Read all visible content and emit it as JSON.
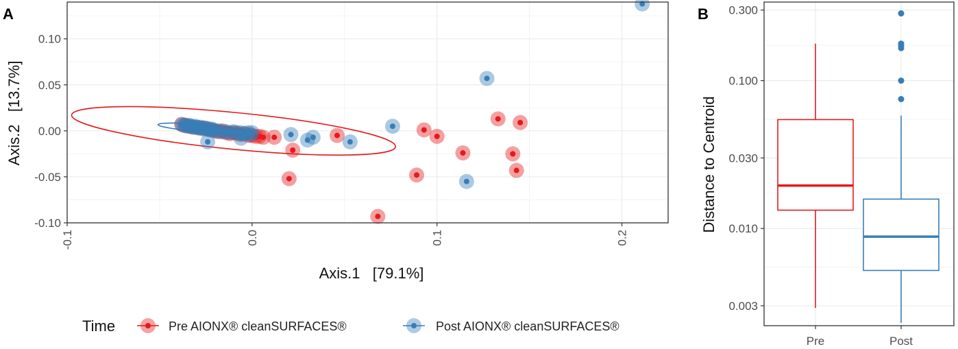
{
  "colors": {
    "pre": "#e41a1c",
    "post": "#377eb8",
    "grid": "#ebebeb",
    "frame": "#333333"
  },
  "legend": {
    "title": "Time",
    "items": [
      {
        "label": "Pre AIONX® cleanSURFACES®",
        "color": "#e41a1c"
      },
      {
        "label": "Post AIONX® cleanSURFACES®",
        "color": "#377eb8"
      }
    ]
  },
  "chart_data": [
    {
      "panel": "A",
      "type": "scatter",
      "xlabel": "Axis.1   [79.1%]",
      "ylabel": "Axis.2   [13.7%]",
      "xlim": [
        -0.1,
        0.225
      ],
      "ylim": [
        -0.1,
        0.14
      ],
      "xticks": [
        -0.1,
        0.0,
        0.1,
        0.2
      ],
      "xtick_labels": [
        "-0.1",
        "0.0",
        "0.1",
        "0.2"
      ],
      "yticks": [
        -0.1,
        -0.05,
        0.0,
        0.05,
        0.1
      ],
      "ytick_labels": [
        "-0.10",
        "-0.05",
        "0.00",
        "0.05",
        "0.10"
      ],
      "grid": true,
      "legend_position": "bottom",
      "series": [
        {
          "name": "Pre AIONX® cleanSURFACES®",
          "color": "#e41a1c",
          "points": [
            [
              -0.038,
              0.007
            ],
            [
              -0.036,
              0.006
            ],
            [
              -0.034,
              0.005
            ],
            [
              -0.032,
              0.004
            ],
            [
              -0.03,
              0.004
            ],
            [
              -0.028,
              0.003
            ],
            [
              -0.026,
              0.003
            ],
            [
              -0.024,
              0.002
            ],
            [
              -0.022,
              0.001
            ],
            [
              -0.02,
              0.0
            ],
            [
              -0.018,
              -0.001
            ],
            [
              -0.016,
              0.0
            ],
            [
              -0.014,
              -0.002
            ],
            [
              -0.012,
              -0.003
            ],
            [
              -0.01,
              -0.002
            ],
            [
              -0.008,
              -0.003
            ],
            [
              -0.006,
              -0.004
            ],
            [
              -0.004,
              -0.003
            ],
            [
              -0.002,
              -0.005
            ],
            [
              0.0,
              -0.005
            ],
            [
              0.002,
              -0.006
            ],
            [
              0.004,
              -0.006
            ],
            [
              0.006,
              -0.007
            ],
            [
              0.012,
              -0.007
            ],
            [
              0.022,
              -0.021
            ],
            [
              0.02,
              -0.052
            ],
            [
              0.046,
              -0.005
            ],
            [
              0.068,
              -0.093
            ],
            [
              0.089,
              -0.048
            ],
            [
              0.093,
              0.001
            ],
            [
              0.1,
              -0.006
            ],
            [
              0.114,
              -0.024
            ],
            [
              0.133,
              0.013
            ],
            [
              0.141,
              -0.025
            ],
            [
              0.143,
              -0.043
            ],
            [
              0.145,
              0.009
            ]
          ]
        },
        {
          "name": "Post AIONX® cleanSURFACES®",
          "color": "#377eb8",
          "points": [
            [
              -0.038,
              0.007
            ],
            [
              -0.037,
              0.006
            ],
            [
              -0.036,
              0.006
            ],
            [
              -0.035,
              0.005
            ],
            [
              -0.034,
              0.006
            ],
            [
              -0.033,
              0.005
            ],
            [
              -0.032,
              0.004
            ],
            [
              -0.031,
              0.005
            ],
            [
              -0.03,
              0.004
            ],
            [
              -0.029,
              0.003
            ],
            [
              -0.028,
              0.004
            ],
            [
              -0.027,
              0.003
            ],
            [
              -0.026,
              0.002
            ],
            [
              -0.025,
              0.003
            ],
            [
              -0.024,
              0.002
            ],
            [
              -0.023,
              0.001
            ],
            [
              -0.022,
              0.002
            ],
            [
              -0.021,
              0.001
            ],
            [
              -0.02,
              0.0
            ],
            [
              -0.018,
              0.0
            ],
            [
              -0.016,
              -0.001
            ],
            [
              -0.014,
              -0.001
            ],
            [
              -0.012,
              -0.002
            ],
            [
              -0.01,
              -0.001
            ],
            [
              -0.008,
              -0.002
            ],
            [
              -0.006,
              -0.002
            ],
            [
              -0.004,
              -0.003
            ],
            [
              -0.002,
              -0.002
            ],
            [
              -0.001,
              -0.004
            ],
            [
              0.0,
              -0.002
            ],
            [
              -0.024,
              -0.012
            ],
            [
              -0.006,
              -0.008
            ],
            [
              0.021,
              -0.004
            ],
            [
              0.03,
              -0.01
            ],
            [
              0.033,
              -0.007
            ],
            [
              0.053,
              -0.012
            ],
            [
              0.076,
              0.005
            ],
            [
              0.116,
              -0.055
            ],
            [
              0.127,
              0.057
            ],
            [
              0.211,
              0.138
            ]
          ]
        }
      ],
      "ellipses": [
        {
          "name": "Pre AIONX® cleanSURFACES®",
          "center": [
            -0.01,
            0.0
          ],
          "half_width": 0.088,
          "half_height": 0.02,
          "tilt_deg": 5.6
        },
        {
          "name": "Post AIONX® cleanSURFACES®",
          "center": [
            -0.027,
            0.003
          ],
          "half_width": 0.024,
          "half_height": 0.004,
          "tilt_deg": 4.5
        }
      ]
    },
    {
      "panel": "B",
      "type": "box",
      "categories": [
        "Pre",
        "Post"
      ],
      "ylabel": "Distance to Centroid",
      "yscale": "log",
      "ylim": [
        0.0022,
        0.34
      ],
      "yticks": [
        0.003,
        0.01,
        0.03,
        0.1,
        0.3
      ],
      "ytick_labels": [
        "0.003",
        "0.010",
        "0.030",
        "0.100",
        "0.300"
      ],
      "grid": true,
      "boxes": [
        {
          "category": "Pre",
          "color": "#e41a1c",
          "whisker_low": 0.0029,
          "q1": 0.0133,
          "median": 0.0195,
          "q3": 0.0545,
          "whisker_high": 0.178,
          "outliers": []
        },
        {
          "category": "Post",
          "color": "#377eb8",
          "whisker_low": 0.0023,
          "q1": 0.0052,
          "median": 0.0088,
          "q3": 0.0158,
          "whisker_high": 0.058,
          "outliers": [
            0.075,
            0.1,
            0.166,
            0.172,
            0.178,
            0.285
          ]
        }
      ]
    }
  ]
}
